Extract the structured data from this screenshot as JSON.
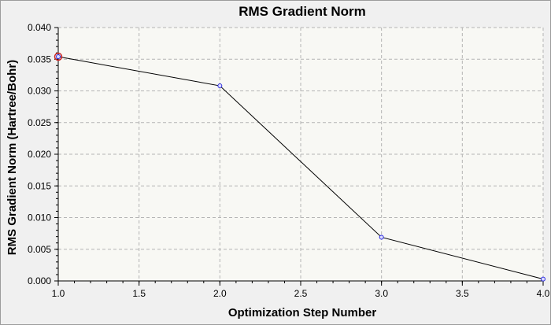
{
  "chart_data": {
    "type": "line",
    "title": "RMS Gradient Norm",
    "xlabel": "Optimization Step Number",
    "ylabel": "RMS Gradient Norm (Hartree/Bohr)",
    "xlim": [
      1.0,
      4.0
    ],
    "ylim": [
      0.0,
      0.04
    ],
    "x_ticks": [
      "1.0",
      "1.5",
      "2.0",
      "2.5",
      "3.0",
      "3.5",
      "4.0"
    ],
    "y_ticks": [
      "0.000",
      "0.005",
      "0.010",
      "0.015",
      "0.020",
      "0.025",
      "0.030",
      "0.035",
      "0.040"
    ],
    "grid": true,
    "series": [
      {
        "x": [
          1,
          2,
          3,
          4
        ],
        "values": [
          0.0354,
          0.0308,
          0.0069,
          0.0003
        ]
      }
    ],
    "highlighted_point_index": 0,
    "colors": {
      "plot_background": "#f8f8f4",
      "outer_background": "#f0f0f0",
      "line": "#000000",
      "marker": "#2a2ae0",
      "highlight": "#cc2222",
      "grid": "#b4b4b4"
    }
  }
}
